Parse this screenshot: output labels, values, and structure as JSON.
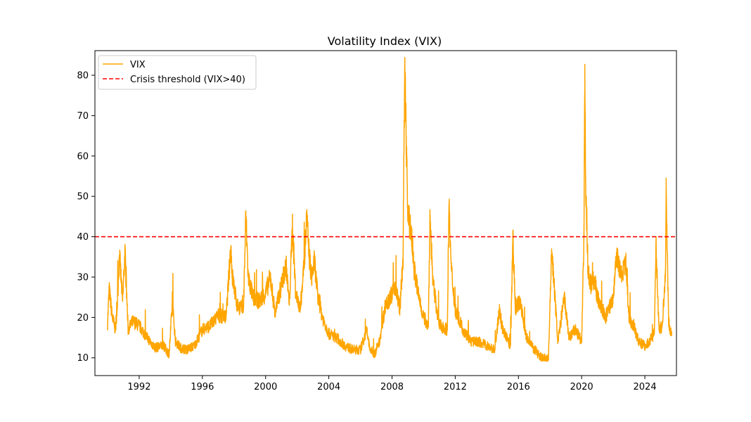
{
  "chart_data": {
    "type": "line",
    "title": "Volatility Index (VIX)",
    "xlabel": "",
    "ylabel": "",
    "xlim": [
      1989.2,
      2026.0
    ],
    "ylim": [
      5.6,
      86.1
    ],
    "x_ticks": [
      1992,
      1996,
      2000,
      2004,
      2008,
      2012,
      2016,
      2020,
      2024
    ],
    "y_ticks": [
      10,
      20,
      30,
      40,
      50,
      60,
      70,
      80
    ],
    "grid": false,
    "legend_position": "upper-left",
    "series": [
      {
        "name": "VIX",
        "color": "#ffa500",
        "x": [
          1990.0,
          1990.1,
          1990.3,
          1990.5,
          1990.6,
          1990.75,
          1990.85,
          1990.95,
          1991.1,
          1991.3,
          1991.6,
          1992.0,
          1992.5,
          1993.0,
          1993.5,
          1993.9,
          1994.1,
          1994.3,
          1994.6,
          1995.0,
          1995.5,
          1996.0,
          1996.5,
          1997.0,
          1997.5,
          1997.8,
          1997.9,
          1998.2,
          1998.6,
          1998.75,
          1998.9,
          1999.2,
          1999.6,
          2000.0,
          2000.3,
          2000.6,
          2001.0,
          2001.3,
          2001.5,
          2001.7,
          2001.9,
          2002.2,
          2002.5,
          2002.6,
          2002.75,
          2002.9,
          2003.1,
          2003.3,
          2003.6,
          2004.0,
          2004.5,
          2005.0,
          2005.5,
          2006.0,
          2006.4,
          2006.6,
          2006.9,
          2007.2,
          2007.6,
          2007.9,
          2008.2,
          2008.5,
          2008.7,
          2008.8,
          2008.9,
          2009.0,
          2009.2,
          2009.4,
          2009.7,
          2010.0,
          2010.3,
          2010.4,
          2010.6,
          2011.0,
          2011.5,
          2011.6,
          2011.75,
          2012.0,
          2012.5,
          2013.0,
          2013.5,
          2014.0,
          2014.5,
          2014.8,
          2015.0,
          2015.5,
          2015.65,
          2015.8,
          2016.1,
          2016.5,
          2017.0,
          2017.5,
          2017.9,
          2018.1,
          2018.5,
          2018.9,
          2019.2,
          2019.6,
          2020.0,
          2020.15,
          2020.2,
          2020.25,
          2020.4,
          2020.6,
          2020.8,
          2021.0,
          2021.5,
          2022.0,
          2022.2,
          2022.5,
          2022.8,
          2023.0,
          2023.3,
          2023.6,
          2024.0,
          2024.3,
          2024.6,
          2024.7,
          2024.9,
          2025.1,
          2025.3,
          2025.35,
          2025.5,
          2025.7
        ],
        "values": [
          18.5,
          27.0,
          20.0,
          17.0,
          22.0,
          35.5,
          30.0,
          24.0,
          36.0,
          17.0,
          19.0,
          18.0,
          15.0,
          12.5,
          13.0,
          11.0,
          23.5,
          14.0,
          12.5,
          12.0,
          13.0,
          17.0,
          18.0,
          20.5,
          20.0,
          37.5,
          30.0,
          23.0,
          22.0,
          45.5,
          30.0,
          25.0,
          24.0,
          26.0,
          30.0,
          21.0,
          28.0,
          33.0,
          23.0,
          43.0,
          26.0,
          22.0,
          37.0,
          45.0,
          36.0,
          30.0,
          34.0,
          25.0,
          20.0,
          16.0,
          15.0,
          13.0,
          12.0,
          12.0,
          17.0,
          12.0,
          11.0,
          14.0,
          23.5,
          25.0,
          28.0,
          22.0,
          35.0,
          80.8,
          65.0,
          45.0,
          42.0,
          32.0,
          25.0,
          20.0,
          18.0,
          45.5,
          28.0,
          18.0,
          17.0,
          47.5,
          32.0,
          22.0,
          17.0,
          14.0,
          14.0,
          13.0,
          12.0,
          22.0,
          17.0,
          13.0,
          40.5,
          22.0,
          24.0,
          15.0,
          12.0,
          10.0,
          9.5,
          37.0,
          14.0,
          25.0,
          15.0,
          17.0,
          14.0,
          40.0,
          82.7,
          55.0,
          32.0,
          28.0,
          30.0,
          25.0,
          20.0,
          25.0,
          36.0,
          30.0,
          33.0,
          20.0,
          18.0,
          14.0,
          13.0,
          14.0,
          16.0,
          38.0,
          17.0,
          18.0,
          30.0,
          52.3,
          19.0,
          15.5
        ]
      },
      {
        "name": "Crisis threshold (VIX>40)",
        "color": "#ff0000",
        "style": "dashed",
        "y": 40
      }
    ]
  }
}
